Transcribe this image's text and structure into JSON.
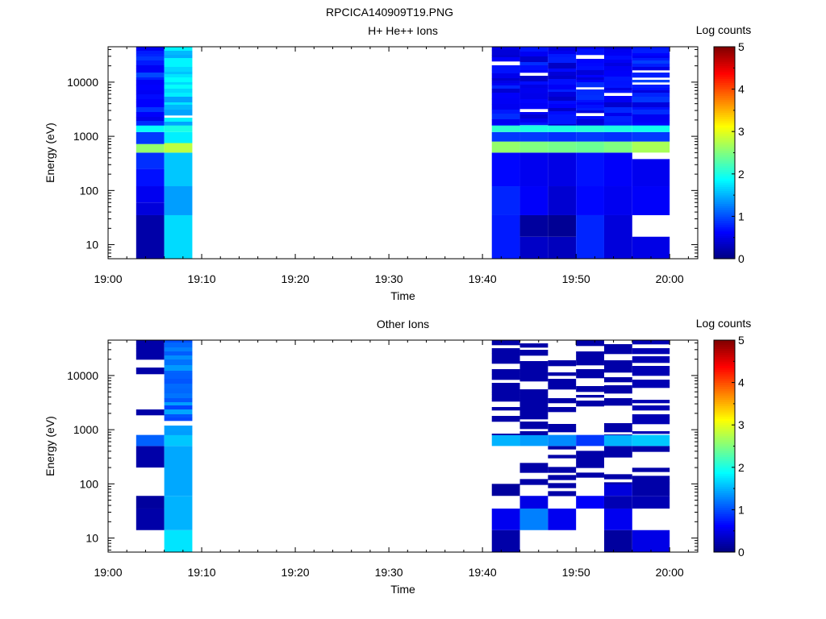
{
  "figure_title": "RPCICA140909T19.PNG",
  "colors": {
    "axis": "#000000",
    "background": "#ffffff"
  },
  "chart_data": [
    {
      "type": "heatmap",
      "title": "H+ He++ Ions",
      "xlabel": "Time",
      "ylabel": "Energy (eV)",
      "x_ticks": [
        "19:00",
        "19:10",
        "19:20",
        "19:30",
        "19:40",
        "19:50",
        "20:00"
      ],
      "x_range": [
        "19:00",
        "20:03"
      ],
      "y_scale": "log",
      "y_ticks": [
        "10",
        "100",
        "1000",
        "10000"
      ],
      "y_range": [
        5.5,
        45000
      ],
      "colorbar": {
        "label": "Log counts",
        "ticks": [
          "0",
          "1",
          "2",
          "3",
          "4",
          "5"
        ],
        "range": [
          0,
          5
        ],
        "colormap": "jet"
      },
      "columns": [
        {
          "t0": "19:03",
          "t1": "19:06",
          "bands": [
            {
              "e0": 5.5,
              "e1": 35,
              "v": 0.2
            },
            {
              "e0": 35,
              "e1": 60,
              "v": 0.45
            },
            {
              "e0": 60,
              "e1": 120,
              "v": 0.55
            },
            {
              "e0": 120,
              "e1": 250,
              "v": 0.7
            },
            {
              "e0": 250,
              "e1": 500,
              "v": 0.85
            },
            {
              "e0": 500,
              "e1": 720,
              "v": 2.6
            },
            {
              "e0": 720,
              "e1": 1200,
              "v": 0.9
            },
            {
              "e0": 1200,
              "e1": 1600,
              "v": 1.9
            },
            {
              "e0": 1600,
              "e1": 45000,
              "v": 0.75,
              "striped": true
            }
          ]
        },
        {
          "t0": "19:06",
          "t1": "19:09",
          "bands": [
            {
              "e0": 5.5,
              "e1": 35,
              "v": 1.7
            },
            {
              "e0": 35,
              "e1": 120,
              "v": 1.4
            },
            {
              "e0": 120,
              "e1": 500,
              "v": 1.6
            },
            {
              "e0": 500,
              "e1": 750,
              "v": 2.8
            },
            {
              "e0": 750,
              "e1": 1200,
              "v": 1.8
            },
            {
              "e0": 1200,
              "e1": 1600,
              "v": 2.0
            },
            {
              "e0": 1600,
              "e1": 45000,
              "v": 1.65,
              "striped": true
            }
          ]
        },
        {
          "t0": "19:41",
          "t1": "19:44",
          "bands": [
            {
              "e0": 5.5,
              "e1": 35,
              "v": 0.75
            },
            {
              "e0": 35,
              "e1": 120,
              "v": 0.8
            },
            {
              "e0": 120,
              "e1": 500,
              "v": 0.65
            },
            {
              "e0": 500,
              "e1": 800,
              "v": 2.6
            },
            {
              "e0": 800,
              "e1": 1200,
              "v": 0.9
            },
            {
              "e0": 1200,
              "e1": 1600,
              "v": 2.1
            },
            {
              "e0": 1600,
              "e1": 45000,
              "v": 0.6,
              "striped": true
            }
          ]
        },
        {
          "t0": "19:44",
          "t1": "19:47",
          "bands": [
            {
              "e0": 5.5,
              "e1": 14,
              "v": 0.35
            },
            {
              "e0": 14,
              "e1": 35,
              "v": 0.15
            },
            {
              "e0": 35,
              "e1": 120,
              "v": 0.6
            },
            {
              "e0": 120,
              "e1": 500,
              "v": 0.55
            },
            {
              "e0": 500,
              "e1": 800,
              "v": 2.5
            },
            {
              "e0": 800,
              "e1": 1200,
              "v": 0.9
            },
            {
              "e0": 1200,
              "e1": 1600,
              "v": 2.0
            },
            {
              "e0": 1600,
              "e1": 45000,
              "v": 0.6,
              "striped": true
            }
          ]
        },
        {
          "t0": "19:47",
          "t1": "19:50",
          "bands": [
            {
              "e0": 5.5,
              "e1": 14,
              "v": 0.3
            },
            {
              "e0": 14,
              "e1": 35,
              "v": 0.1
            },
            {
              "e0": 35,
              "e1": 120,
              "v": 0.4
            },
            {
              "e0": 120,
              "e1": 500,
              "v": 0.5
            },
            {
              "e0": 500,
              "e1": 800,
              "v": 2.45
            },
            {
              "e0": 800,
              "e1": 1200,
              "v": 0.85
            },
            {
              "e0": 1200,
              "e1": 1600,
              "v": 2.0
            },
            {
              "e0": 1600,
              "e1": 45000,
              "v": 0.55,
              "striped": true
            }
          ]
        },
        {
          "t0": "19:50",
          "t1": "19:53",
          "bands": [
            {
              "e0": 5.5,
              "e1": 35,
              "v": 0.8
            },
            {
              "e0": 35,
              "e1": 120,
              "v": 0.65
            },
            {
              "e0": 120,
              "e1": 500,
              "v": 0.7
            },
            {
              "e0": 500,
              "e1": 800,
              "v": 2.4
            },
            {
              "e0": 800,
              "e1": 1200,
              "v": 0.9
            },
            {
              "e0": 1200,
              "e1": 1600,
              "v": 2.05
            },
            {
              "e0": 1600,
              "e1": 45000,
              "v": 0.65,
              "striped": true
            }
          ]
        },
        {
          "t0": "19:53",
          "t1": "19:56",
          "bands": [
            {
              "e0": 5.5,
              "e1": 35,
              "v": 0.45
            },
            {
              "e0": 35,
              "e1": 120,
              "v": 0.55
            },
            {
              "e0": 120,
              "e1": 500,
              "v": 0.6
            },
            {
              "e0": 500,
              "e1": 800,
              "v": 2.5
            },
            {
              "e0": 800,
              "e1": 1200,
              "v": 0.85
            },
            {
              "e0": 1200,
              "e1": 1600,
              "v": 2.0
            },
            {
              "e0": 1600,
              "e1": 45000,
              "v": 0.6,
              "striped": true
            }
          ]
        },
        {
          "t0": "19:56",
          "t1": "20:00",
          "bands": [
            {
              "e0": 5.5,
              "e1": 14,
              "v": 0.5
            },
            {
              "e0": 35,
              "e1": 120,
              "v": 0.6
            },
            {
              "e0": 120,
              "e1": 380,
              "v": 0.55
            },
            {
              "e0": 500,
              "e1": 800,
              "v": 2.7
            },
            {
              "e0": 800,
              "e1": 1200,
              "v": 0.9
            },
            {
              "e0": 1200,
              "e1": 1600,
              "v": 1.95
            },
            {
              "e0": 1600,
              "e1": 45000,
              "v": 0.7,
              "striped": true
            }
          ]
        }
      ]
    },
    {
      "type": "heatmap",
      "title": "Other Ions",
      "xlabel": "Time",
      "ylabel": "Energy (eV)",
      "x_ticks": [
        "19:00",
        "19:10",
        "19:20",
        "19:30",
        "19:40",
        "19:50",
        "20:00"
      ],
      "x_range": [
        "19:00",
        "20:03"
      ],
      "y_scale": "log",
      "y_ticks": [
        "10",
        "100",
        "1000",
        "10000"
      ],
      "y_range": [
        5.5,
        45000
      ],
      "colorbar": {
        "label": "Log counts",
        "ticks": [
          "0",
          "1",
          "2",
          "3",
          "4",
          "5"
        ],
        "range": [
          0,
          5
        ],
        "colormap": "jet"
      },
      "columns": [
        {
          "t0": "19:03",
          "t1": "19:06",
          "bands": [
            {
              "e0": 14,
              "e1": 35,
              "v": 0.2
            },
            {
              "e0": 35,
              "e1": 60,
              "v": 0.15
            },
            {
              "e0": 200,
              "e1": 500,
              "v": 0.2
            },
            {
              "e0": 500,
              "e1": 800,
              "v": 1.1
            },
            {
              "e0": 800,
              "e1": 45000,
              "v": 0.2,
              "sparse": true
            }
          ]
        },
        {
          "t0": "19:06",
          "t1": "19:09",
          "bands": [
            {
              "e0": 5.5,
              "e1": 14,
              "v": 1.75
            },
            {
              "e0": 14,
              "e1": 60,
              "v": 1.5
            },
            {
              "e0": 60,
              "e1": 500,
              "v": 1.45
            },
            {
              "e0": 500,
              "e1": 800,
              "v": 1.6
            },
            {
              "e0": 800,
              "e1": 45000,
              "v": 1.2,
              "striped": true
            }
          ]
        },
        {
          "t0": "19:41",
          "t1": "19:44",
          "bands": [
            {
              "e0": 5.5,
              "e1": 14,
              "v": 0.2
            },
            {
              "e0": 14,
              "e1": 35,
              "v": 0.55
            },
            {
              "e0": 60,
              "e1": 100,
              "v": 0.15
            },
            {
              "e0": 500,
              "e1": 800,
              "v": 1.5
            },
            {
              "e0": 800,
              "e1": 45000,
              "v": 0.2,
              "sparse": true
            }
          ]
        },
        {
          "t0": "19:44",
          "t1": "19:47",
          "bands": [
            {
              "e0": 14,
              "e1": 35,
              "v": 1.25
            },
            {
              "e0": 35,
              "e1": 60,
              "v": 0.5
            },
            {
              "e0": 60,
              "e1": 500,
              "v": 0.2,
              "sparse": true
            },
            {
              "e0": 500,
              "e1": 800,
              "v": 1.4
            },
            {
              "e0": 800,
              "e1": 45000,
              "v": 0.2,
              "sparse": true
            }
          ]
        },
        {
          "t0": "19:47",
          "t1": "19:50",
          "bands": [
            {
              "e0": 14,
              "e1": 35,
              "v": 0.55
            },
            {
              "e0": 60,
              "e1": 500,
              "v": 0.2,
              "sparse": true
            },
            {
              "e0": 500,
              "e1": 800,
              "v": 1.3
            },
            {
              "e0": 800,
              "e1": 45000,
              "v": 0.2,
              "sparse": true
            }
          ]
        },
        {
          "t0": "19:50",
          "t1": "19:53",
          "bands": [
            {
              "e0": 35,
              "e1": 60,
              "v": 0.6
            },
            {
              "e0": 60,
              "e1": 500,
              "v": 0.2,
              "sparse": true
            },
            {
              "e0": 500,
              "e1": 800,
              "v": 0.9
            },
            {
              "e0": 800,
              "e1": 45000,
              "v": 0.2,
              "sparse": true
            }
          ]
        },
        {
          "t0": "19:53",
          "t1": "19:56",
          "bands": [
            {
              "e0": 5.5,
              "e1": 14,
              "v": 0.15
            },
            {
              "e0": 14,
              "e1": 35,
              "v": 0.55
            },
            {
              "e0": 35,
              "e1": 60,
              "v": 0.25
            },
            {
              "e0": 60,
              "e1": 100,
              "v": 0.45
            },
            {
              "e0": 100,
              "e1": 500,
              "v": 0.2,
              "sparse": true
            },
            {
              "e0": 500,
              "e1": 800,
              "v": 1.5
            },
            {
              "e0": 800,
              "e1": 45000,
              "v": 0.2,
              "sparse": true
            }
          ]
        },
        {
          "t0": "19:56",
          "t1": "20:00",
          "bands": [
            {
              "e0": 5.5,
              "e1": 14,
              "v": 0.5
            },
            {
              "e0": 35,
              "e1": 60,
              "v": 0.25
            },
            {
              "e0": 60,
              "e1": 100,
              "v": 0.2
            },
            {
              "e0": 100,
              "e1": 500,
              "v": 0.2,
              "sparse": true
            },
            {
              "e0": 500,
              "e1": 800,
              "v": 1.6
            },
            {
              "e0": 800,
              "e1": 45000,
              "v": 0.25,
              "sparse": true
            }
          ]
        }
      ]
    }
  ]
}
